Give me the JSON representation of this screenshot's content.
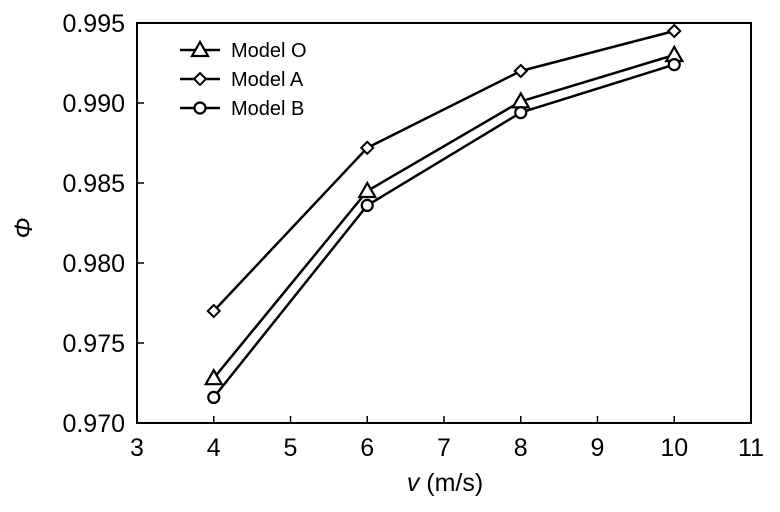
{
  "chart_data": {
    "type": "line",
    "title": "",
    "xlabel": {
      "var": "v",
      "unit": "(m/s)"
    },
    "ylabel": "Φ",
    "xlim": [
      3,
      11
    ],
    "ylim": [
      0.97,
      0.995
    ],
    "xticks": [
      3,
      4,
      5,
      6,
      7,
      8,
      9,
      10,
      11
    ],
    "yticks": [
      0.97,
      0.975,
      0.98,
      0.985,
      0.99,
      0.995
    ],
    "ytick_labels": [
      "0.970",
      "0.975",
      "0.980",
      "0.985",
      "0.990",
      "0.995"
    ],
    "grid": false,
    "legend_position": "top-left",
    "x": [
      4,
      6,
      8,
      10
    ],
    "series": [
      {
        "name": "Model O",
        "marker": "triangle",
        "values": [
          0.9728,
          0.9845,
          0.9901,
          0.993
        ]
      },
      {
        "name": "Model A",
        "marker": "diamond",
        "values": [
          0.977,
          0.9872,
          0.992,
          0.9945
        ]
      },
      {
        "name": "Model B",
        "marker": "circle",
        "values": [
          0.9716,
          0.9836,
          0.9894,
          0.9924
        ]
      }
    ]
  }
}
